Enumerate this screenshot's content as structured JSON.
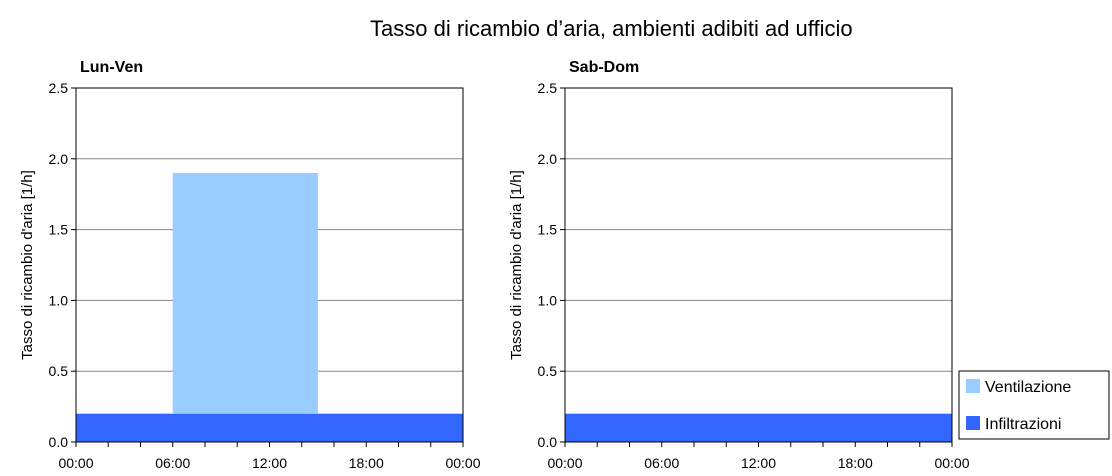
{
  "title": "Tasso di ricambio d’aria, ambienti adibiti ad ufficio",
  "colors": {
    "ventilazione": "#99ccff",
    "infiltrazioni": "#3366ff",
    "grid": "#888888",
    "axis": "#000000"
  },
  "legend": {
    "placement": "bottom-right",
    "items": [
      "Ventilazione",
      "Infiltrazioni"
    ]
  },
  "chart_data": [
    {
      "type": "area",
      "title": "Lun-Ven",
      "ylabel": "Tasso di ricambio d'aria [1/h]",
      "xlabel": "",
      "ylim": [
        0,
        2.5
      ],
      "yticks": [
        "0.0",
        "0.5",
        "1.0",
        "1.5",
        "2.0",
        "2.5"
      ],
      "xlim": [
        0,
        24
      ],
      "xtick_labels": [
        "00:00",
        "06:00",
        "12:00",
        "18:00",
        "00:00"
      ],
      "grid": true,
      "series": [
        {
          "name": "Infiltrazioni",
          "segments": [
            {
              "from": 0,
              "to": 24,
              "value": 0.2
            }
          ]
        },
        {
          "name": "Ventilazione",
          "segments": [
            {
              "from": 6,
              "to": 15,
              "value": 1.7
            }
          ]
        }
      ]
    },
    {
      "type": "area",
      "title": "Sab-Dom",
      "ylabel": "Tasso di ricambio d'aria [1/h]",
      "xlabel": "",
      "ylim": [
        0,
        2.5
      ],
      "yticks": [
        "0.0",
        "0.5",
        "1.0",
        "1.5",
        "2.0",
        "2.5"
      ],
      "xlim": [
        0,
        24
      ],
      "xtick_labels": [
        "00:00",
        "06:00",
        "12:00",
        "18:00",
        "00:00"
      ],
      "grid": true,
      "series": [
        {
          "name": "Infiltrazioni",
          "segments": [
            {
              "from": 0,
              "to": 24,
              "value": 0.2
            }
          ]
        },
        {
          "name": "Ventilazione",
          "segments": []
        }
      ]
    }
  ]
}
